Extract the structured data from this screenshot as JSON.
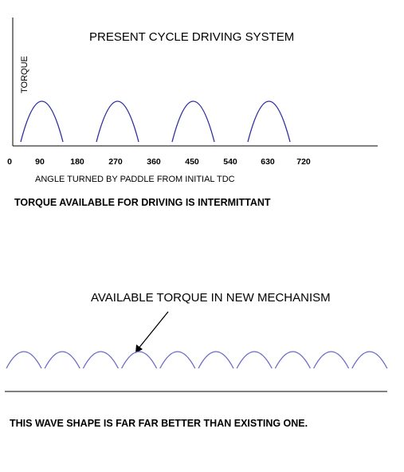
{
  "top_chart": {
    "title": "PRESENT CYCLE DRIVING SYSTEM",
    "y_label": "TORQUE",
    "x_label": "ANGLE TURNED BY PADDLE FROM INITIAL TDC",
    "x_ticks": [
      "0",
      "90",
      "180",
      "270",
      "360",
      "450",
      "540",
      "630",
      "720"
    ],
    "note": "TORQUE AVAILABLE FOR DRIVING IS INTERMITTANT",
    "wave_color": "#2e2e9e",
    "hump_count": 4
  },
  "bottom_chart": {
    "label": "AVAILABLE TORQUE IN NEW MECHANISM",
    "note": "THIS WAVE SHAPE IS FAR FAR BETTER THAN EXISTING ONE.",
    "wave_color": "#6a6ac6",
    "hump_count": 10
  }
}
